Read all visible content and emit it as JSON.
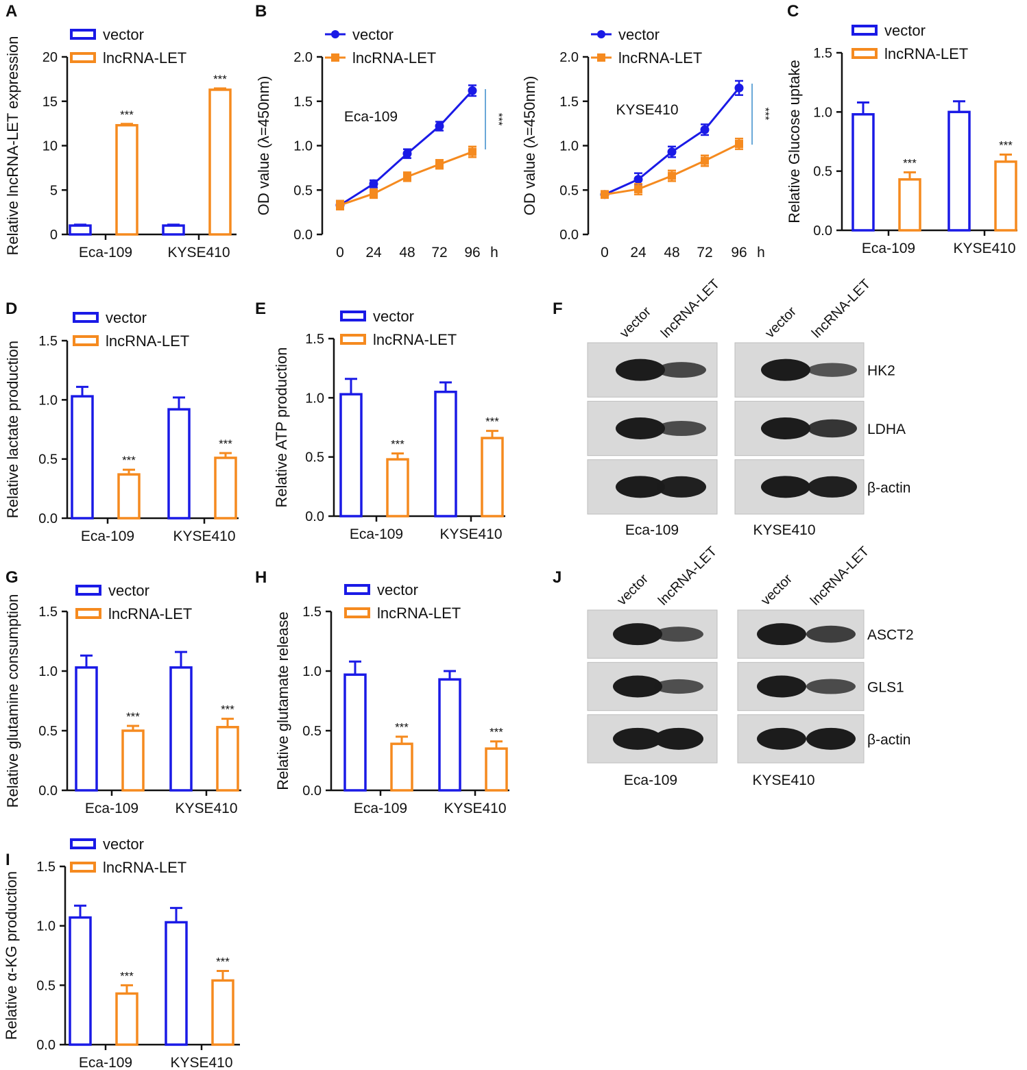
{
  "figure": {
    "legend": {
      "vector": "vector",
      "lnc": "lncRNA-LET"
    },
    "colors": {
      "vector": "#1a1ae6",
      "lnc": "#f58a1f",
      "axis": "#111111",
      "sigline": "#6aa8d8"
    },
    "significance_mark": "***"
  },
  "chart_data": [
    {
      "panel": "A",
      "type": "bar",
      "ylabel": "Relative lncRNA-LET expression",
      "categories": [
        "Eca-109",
        "KYSE410"
      ],
      "ylim": [
        0,
        20
      ],
      "yticks": [
        0,
        5,
        10,
        15,
        20
      ],
      "series": [
        {
          "name": "vector",
          "values": [
            1.0,
            1.0
          ],
          "errors": [
            0.1,
            0.1
          ]
        },
        {
          "name": "lncRNA-LET",
          "values": [
            12.3,
            16.3
          ],
          "errors": [
            0.15,
            0.15
          ]
        }
      ],
      "annotations": [
        "***",
        "***"
      ]
    },
    {
      "panel": "B",
      "type": "line",
      "ylabel": "OD value (λ=450nm)",
      "inset_label": "Eca-109",
      "x": [
        0,
        24,
        48,
        72,
        96
      ],
      "xticks": [
        "0",
        "24",
        "48",
        "72",
        "96"
      ],
      "xunit": "h",
      "ylim": [
        0,
        2.0
      ],
      "yticks": [
        "0.0",
        "0.5",
        "1.0",
        "1.5",
        "2.0"
      ],
      "series": [
        {
          "name": "vector",
          "values": [
            0.33,
            0.57,
            0.91,
            1.22,
            1.62
          ],
          "errors": [
            0.05,
            0.04,
            0.05,
            0.05,
            0.06
          ]
        },
        {
          "name": "lncRNA-LET",
          "values": [
            0.33,
            0.46,
            0.65,
            0.79,
            0.93
          ],
          "errors": [
            0.05,
            0.05,
            0.05,
            0.05,
            0.06
          ]
        }
      ],
      "annotations": [
        "***"
      ]
    },
    {
      "panel": "B2",
      "type": "line",
      "ylabel": "OD value (λ=450nm)",
      "inset_label": "KYSE410",
      "x": [
        0,
        24,
        48,
        72,
        96
      ],
      "xticks": [
        "0",
        "24",
        "48",
        "72",
        "96"
      ],
      "xunit": "h",
      "ylim": [
        0,
        2.0
      ],
      "yticks": [
        "0.0",
        "0.5",
        "1.0",
        "1.5",
        "2.0"
      ],
      "series": [
        {
          "name": "vector",
          "values": [
            0.45,
            0.62,
            0.93,
            1.18,
            1.65
          ],
          "errors": [
            0.03,
            0.07,
            0.06,
            0.06,
            0.08
          ]
        },
        {
          "name": "lncRNA-LET",
          "values": [
            0.45,
            0.51,
            0.66,
            0.83,
            1.02
          ],
          "errors": [
            0.04,
            0.06,
            0.06,
            0.06,
            0.06
          ]
        }
      ],
      "annotations": [
        "***"
      ]
    },
    {
      "panel": "C",
      "type": "bar",
      "ylabel": "Relative Glucose uptake",
      "categories": [
        "Eca-109",
        "KYSE410"
      ],
      "ylim": [
        0,
        1.5
      ],
      "yticks": [
        "0.0",
        "0.5",
        "1.0",
        "1.5"
      ],
      "series": [
        {
          "name": "vector",
          "values": [
            0.98,
            1.0
          ],
          "errors": [
            0.1,
            0.09
          ]
        },
        {
          "name": "lncRNA-LET",
          "values": [
            0.43,
            0.58
          ],
          "errors": [
            0.06,
            0.06
          ]
        }
      ],
      "annotations": [
        "***",
        "***"
      ]
    },
    {
      "panel": "D",
      "type": "bar",
      "ylabel": "Relative lactate production",
      "categories": [
        "Eca-109",
        "KYSE410"
      ],
      "ylim": [
        0,
        1.5
      ],
      "yticks": [
        "0.0",
        "0.5",
        "1.0",
        "1.5"
      ],
      "series": [
        {
          "name": "vector",
          "values": [
            1.03,
            0.92
          ],
          "errors": [
            0.08,
            0.1
          ]
        },
        {
          "name": "lncRNA-LET",
          "values": [
            0.37,
            0.51
          ],
          "errors": [
            0.04,
            0.04
          ]
        }
      ],
      "annotations": [
        "***",
        "***"
      ]
    },
    {
      "panel": "E",
      "type": "bar",
      "ylabel": "Relative ATP production",
      "categories": [
        "Eca-109",
        "KYSE410"
      ],
      "ylim": [
        0,
        1.5
      ],
      "yticks": [
        "0.0",
        "0.5",
        "1.0",
        "1.5"
      ],
      "series": [
        {
          "name": "vector",
          "values": [
            1.03,
            1.05
          ],
          "errors": [
            0.13,
            0.08
          ]
        },
        {
          "name": "lncRNA-LET",
          "values": [
            0.48,
            0.66
          ],
          "errors": [
            0.05,
            0.06
          ]
        }
      ],
      "annotations": [
        "***",
        "***"
      ]
    },
    {
      "panel": "G",
      "type": "bar",
      "ylabel": "Relative glutamine consumption",
      "categories": [
        "Eca-109",
        "KYSE410"
      ],
      "ylim": [
        0,
        1.5
      ],
      "yticks": [
        "0.0",
        "0.5",
        "1.0",
        "1.5"
      ],
      "series": [
        {
          "name": "vector",
          "values": [
            1.03,
            1.03
          ],
          "errors": [
            0.1,
            0.13
          ]
        },
        {
          "name": "lncRNA-LET",
          "values": [
            0.5,
            0.53
          ],
          "errors": [
            0.04,
            0.07
          ]
        }
      ],
      "annotations": [
        "***",
        "***"
      ]
    },
    {
      "panel": "H",
      "type": "bar",
      "ylabel": "Relative glutamate release",
      "categories": [
        "Eca-109",
        "KYSE410"
      ],
      "ylim": [
        0,
        1.5
      ],
      "yticks": [
        "0.0",
        "0.5",
        "1.0",
        "1.5"
      ],
      "series": [
        {
          "name": "vector",
          "values": [
            0.97,
            0.93
          ],
          "errors": [
            0.11,
            0.07
          ]
        },
        {
          "name": "lncRNA-LET",
          "values": [
            0.39,
            0.35
          ],
          "errors": [
            0.06,
            0.06
          ]
        }
      ],
      "annotations": [
        "***",
        "***"
      ]
    },
    {
      "panel": "I",
      "type": "bar",
      "ylabel": "Relative α-KG production",
      "categories": [
        "Eca-109",
        "KYSE410"
      ],
      "ylim": [
        0,
        1.5
      ],
      "yticks": [
        "0.0",
        "0.5",
        "1.0",
        "1.5"
      ],
      "series": [
        {
          "name": "vector",
          "values": [
            1.07,
            1.03
          ],
          "errors": [
            0.1,
            0.12
          ]
        },
        {
          "name": "lncRNA-LET",
          "values": [
            0.43,
            0.54
          ],
          "errors": [
            0.07,
            0.08
          ]
        }
      ],
      "annotations": [
        "***",
        "***"
      ]
    }
  ],
  "blots": [
    {
      "panel": "F",
      "lanes": [
        "vector",
        "lncRNA-LET"
      ],
      "cell_lines": [
        "Eca-109",
        "KYSE410"
      ],
      "rows": [
        {
          "label": "HK2",
          "intensity": [
            1.0,
            0.5,
            1.0,
            0.35
          ]
        },
        {
          "label": "LDHA",
          "intensity": [
            1.0,
            0.45,
            1.0,
            0.7
          ]
        },
        {
          "label": "β-actin",
          "intensity": [
            1.0,
            0.95,
            1.0,
            0.95
          ]
        }
      ]
    },
    {
      "panel": "J",
      "lanes": [
        "vector",
        "lncRNA-LET"
      ],
      "cell_lines": [
        "Eca-109",
        "KYSE410"
      ],
      "rows": [
        {
          "label": "ASCT2",
          "intensity": [
            1.0,
            0.45,
            1.0,
            0.6
          ]
        },
        {
          "label": "GLS1",
          "intensity": [
            1.0,
            0.4,
            1.0,
            0.45
          ]
        },
        {
          "label": "β-actin",
          "intensity": [
            1.0,
            1.0,
            1.0,
            1.0
          ]
        }
      ]
    }
  ]
}
